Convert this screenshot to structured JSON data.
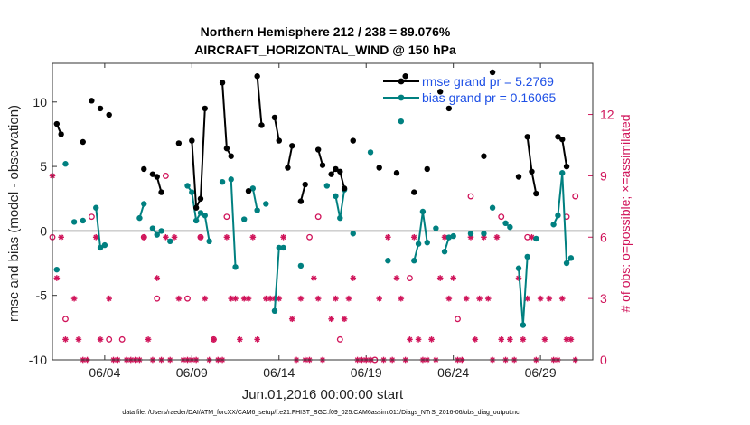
{
  "chart_data": {
    "type": "line",
    "title": "Northern Hemisphere 212 / 238 = 89.076%",
    "subtitle": "AIRCRAFT_HORIZONTAL_WIND @ 150 hPa",
    "xlabel": "Jun.01,2016 00:00:00 start",
    "ylabel": "rmse and bias (model - observation)",
    "ylabel_right": "# of obs: o=possible; ×=assimilated",
    "footnote": "data file: /Users/raeder/DAI/ATM_forcXX/CAM6_setup/f.e21.FHIST_BGC.f09_025.CAM6assim.011/Diags_NTrS_2016-06/obs_diag_output.nc",
    "xlim": [
      1,
      32
    ],
    "ylim": [
      -10,
      13
    ],
    "ylim_right": [
      0,
      14.5
    ],
    "x_ticks": [
      4,
      9,
      14,
      19,
      24,
      29
    ],
    "x_tick_labels": [
      "06/04",
      "06/09",
      "06/14",
      "06/19",
      "06/24",
      "06/29"
    ],
    "y_ticks": [
      -10,
      -5,
      0,
      5,
      10
    ],
    "y_tick_labels": [
      "-10",
      "-5",
      "0",
      "5",
      "10"
    ],
    "y_right_ticks": [
      0,
      3,
      6,
      9,
      12
    ],
    "y_right_tick_labels": [
      "0",
      "3",
      "6",
      "9",
      "12"
    ],
    "legend": {
      "location": "top-right",
      "entries": [
        "rmse grand pr = 5.2769",
        "bias grand pr = 0.16065"
      ]
    },
    "colors": {
      "rmse": "#000000",
      "bias": "#008080",
      "obs": "#d0145a",
      "zero_line": "#b4b4b4"
    },
    "series": [
      {
        "name": "rmse",
        "points": [
          [
            1.25,
            8.3
          ],
          [
            1.5,
            7.5
          ],
          [
            2.75,
            6.9
          ],
          [
            3.25,
            10.1
          ],
          [
            3.75,
            9.5
          ],
          [
            4.25,
            9.0
          ],
          [
            6.25,
            4.8
          ],
          [
            6.75,
            4.4
          ],
          [
            7.0,
            4.2
          ],
          [
            7.25,
            3.0
          ],
          [
            8.25,
            6.8
          ],
          [
            9.0,
            7.0
          ],
          [
            9.25,
            1.8
          ],
          [
            9.5,
            2.5
          ],
          [
            9.75,
            9.5
          ],
          [
            10.75,
            11.5
          ],
          [
            11.0,
            6.4
          ],
          [
            11.25,
            5.8
          ],
          [
            12.25,
            3.1
          ],
          [
            12.75,
            12.0
          ],
          [
            13.0,
            8.2
          ],
          [
            13.75,
            8.8
          ],
          [
            14.0,
            7.0
          ],
          [
            14.5,
            4.9
          ],
          [
            14.75,
            6.6
          ],
          [
            15.25,
            2.3
          ],
          [
            15.5,
            3.6
          ],
          [
            16.25,
            6.3
          ],
          [
            16.5,
            5.1
          ],
          [
            17.0,
            4.4
          ],
          [
            17.25,
            4.8
          ],
          [
            17.5,
            4.6
          ],
          [
            17.75,
            3.3
          ],
          [
            18.25,
            7.0
          ],
          [
            19.75,
            4.9
          ],
          [
            20.75,
            4.5
          ],
          [
            21.25,
            12.0
          ],
          [
            21.75,
            3.0
          ],
          [
            22.5,
            4.8
          ],
          [
            23.25,
            10.8
          ],
          [
            23.75,
            9.5
          ],
          [
            25.75,
            5.8
          ],
          [
            26.25,
            12.3
          ],
          [
            27.75,
            4.2
          ],
          [
            28.25,
            7.3
          ],
          [
            28.5,
            4.6
          ],
          [
            28.75,
            2.9
          ],
          [
            30.0,
            7.3
          ],
          [
            30.25,
            7.1
          ],
          [
            30.5,
            5.0
          ]
        ]
      },
      {
        "name": "bias",
        "points": [
          [
            1.25,
            -3.0
          ],
          [
            1.75,
            5.2
          ],
          [
            2.25,
            0.7
          ],
          [
            2.75,
            0.8
          ],
          [
            3.5,
            1.8
          ],
          [
            3.75,
            -1.3
          ],
          [
            4.0,
            -1.1
          ],
          [
            6.0,
            1.0
          ],
          [
            6.25,
            2.1
          ],
          [
            6.75,
            0.2
          ],
          [
            7.0,
            -0.3
          ],
          [
            7.25,
            0.0
          ],
          [
            7.75,
            -0.8
          ],
          [
            8.75,
            3.5
          ],
          [
            9.0,
            3.0
          ],
          [
            9.25,
            0.8
          ],
          [
            9.5,
            1.4
          ],
          [
            9.75,
            1.2
          ],
          [
            10.0,
            -0.8
          ],
          [
            10.75,
            3.8
          ],
          [
            11.25,
            4.0
          ],
          [
            11.5,
            -2.8
          ],
          [
            12.0,
            0.9
          ],
          [
            12.5,
            3.3
          ],
          [
            12.75,
            1.6
          ],
          [
            13.25,
            2.1
          ],
          [
            13.75,
            -6.2
          ],
          [
            14.0,
            -1.3
          ],
          [
            14.25,
            -1.3
          ],
          [
            15.25,
            -2.7
          ],
          [
            16.75,
            3.5
          ],
          [
            17.25,
            2.7
          ],
          [
            17.5,
            1.0
          ],
          [
            17.75,
            3.2
          ],
          [
            18.25,
            -0.2
          ],
          [
            19.25,
            6.1
          ],
          [
            20.25,
            -2.3
          ],
          [
            21.0,
            8.5
          ],
          [
            21.75,
            -2.3
          ],
          [
            22.0,
            -1.0
          ],
          [
            22.25,
            1.5
          ],
          [
            22.5,
            -0.9
          ],
          [
            23.0,
            0.2
          ],
          [
            23.5,
            -1.6
          ],
          [
            23.75,
            -0.5
          ],
          [
            24.0,
            -0.4
          ],
          [
            25.0,
            -0.2
          ],
          [
            25.75,
            -0.2
          ],
          [
            26.25,
            1.8
          ],
          [
            27.0,
            0.6
          ],
          [
            27.25,
            0.3
          ],
          [
            27.75,
            -2.9
          ],
          [
            28.0,
            -7.3
          ],
          [
            28.25,
            -2.0
          ],
          [
            28.75,
            -0.6
          ],
          [
            29.75,
            0.5
          ],
          [
            30.0,
            1.2
          ],
          [
            30.25,
            4.5
          ],
          [
            30.5,
            -2.5
          ],
          [
            30.75,
            -2.1
          ]
        ]
      },
      {
        "name": "possible",
        "points": [
          [
            1.0,
            6.0
          ],
          [
            1.75,
            2.0
          ],
          [
            3.25,
            7.0
          ],
          [
            4.25,
            1.0
          ],
          [
            5.0,
            1.0
          ],
          [
            6.25,
            6.0
          ],
          [
            7.0,
            3.0
          ],
          [
            7.5,
            9.0
          ],
          [
            8.75,
            3.0
          ],
          [
            9.5,
            6.0
          ],
          [
            10.25,
            1.0
          ],
          [
            11.0,
            7.0
          ],
          [
            15.75,
            6.0
          ],
          [
            16.25,
            7.0
          ],
          [
            17.5,
            1.0
          ],
          [
            19.5,
            0.0
          ],
          [
            21.5,
            4.0
          ],
          [
            24.25,
            2.0
          ],
          [
            25.0,
            8.0
          ],
          [
            26.75,
            7.0
          ],
          [
            28.25,
            6.0
          ],
          [
            30.5,
            7.0
          ],
          [
            31.0,
            8.0
          ]
        ]
      },
      {
        "name": "assimilated",
        "points": [
          [
            1.0,
            9.0
          ],
          [
            1.25,
            4.0
          ],
          [
            1.5,
            6.0
          ],
          [
            1.75,
            1.0
          ],
          [
            2.25,
            3.0
          ],
          [
            2.5,
            1.0
          ],
          [
            2.75,
            0.0
          ],
          [
            3.0,
            0.0
          ],
          [
            3.5,
            6.0
          ],
          [
            3.75,
            1.0
          ],
          [
            4.25,
            3.0
          ],
          [
            4.5,
            0.0
          ],
          [
            4.75,
            0.0
          ],
          [
            5.25,
            0.0
          ],
          [
            5.5,
            0.0
          ],
          [
            5.75,
            0.0
          ],
          [
            6.0,
            0.0
          ],
          [
            6.25,
            6.0
          ],
          [
            6.5,
            1.0
          ],
          [
            6.75,
            0.0
          ],
          [
            7.0,
            4.0
          ],
          [
            7.25,
            0.0
          ],
          [
            7.5,
            6.0
          ],
          [
            7.75,
            0.0
          ],
          [
            8.0,
            6.0
          ],
          [
            8.25,
            3.0
          ],
          [
            8.5,
            0.0
          ],
          [
            8.75,
            0.0
          ],
          [
            9.0,
            0.0
          ],
          [
            9.25,
            0.0
          ],
          [
            9.5,
            6.0
          ],
          [
            9.75,
            3.0
          ],
          [
            10.0,
            0.0
          ],
          [
            10.25,
            1.0
          ],
          [
            10.5,
            0.0
          ],
          [
            10.75,
            0.0
          ],
          [
            11.0,
            6.0
          ],
          [
            11.25,
            3.0
          ],
          [
            11.5,
            3.0
          ],
          [
            11.75,
            1.0
          ],
          [
            12.0,
            3.0
          ],
          [
            12.25,
            3.0
          ],
          [
            12.5,
            6.0
          ],
          [
            12.75,
            1.0
          ],
          [
            13.25,
            3.0
          ],
          [
            13.5,
            3.0
          ],
          [
            13.75,
            3.0
          ],
          [
            14.0,
            3.0
          ],
          [
            14.25,
            6.0
          ],
          [
            14.75,
            2.0
          ],
          [
            15.0,
            0.0
          ],
          [
            15.25,
            3.0
          ],
          [
            15.5,
            0.0
          ],
          [
            15.75,
            0.0
          ],
          [
            16.0,
            4.0
          ],
          [
            16.25,
            3.0
          ],
          [
            16.5,
            0.0
          ],
          [
            17.0,
            2.0
          ],
          [
            17.25,
            3.0
          ],
          [
            17.75,
            2.0
          ],
          [
            18.0,
            3.0
          ],
          [
            18.25,
            4.0
          ],
          [
            18.5,
            0.0
          ],
          [
            18.75,
            0.0
          ],
          [
            19.0,
            0.0
          ],
          [
            19.25,
            0.0
          ],
          [
            19.75,
            3.0
          ],
          [
            20.0,
            0.0
          ],
          [
            20.25,
            6.0
          ],
          [
            20.5,
            0.0
          ],
          [
            20.75,
            4.0
          ],
          [
            21.0,
            3.0
          ],
          [
            21.25,
            0.0
          ],
          [
            21.5,
            1.0
          ],
          [
            21.75,
            6.0
          ],
          [
            22.0,
            1.0
          ],
          [
            22.25,
            0.0
          ],
          [
            22.5,
            0.0
          ],
          [
            22.75,
            1.0
          ],
          [
            23.0,
            0.0
          ],
          [
            23.25,
            4.0
          ],
          [
            23.5,
            6.0
          ],
          [
            23.75,
            3.0
          ],
          [
            24.0,
            4.0
          ],
          [
            24.25,
            0.0
          ],
          [
            24.5,
            0.0
          ],
          [
            24.75,
            3.0
          ],
          [
            25.0,
            6.0
          ],
          [
            25.25,
            1.0
          ],
          [
            25.5,
            3.0
          ],
          [
            25.75,
            6.0
          ],
          [
            26.0,
            3.0
          ],
          [
            26.25,
            0.0
          ],
          [
            26.5,
            6.0
          ],
          [
            26.75,
            1.0
          ],
          [
            27.0,
            0.0
          ],
          [
            27.25,
            1.0
          ],
          [
            27.5,
            0.0
          ],
          [
            27.75,
            4.0
          ],
          [
            28.0,
            1.0
          ],
          [
            28.25,
            3.0
          ],
          [
            28.5,
            6.0
          ],
          [
            28.75,
            0.0
          ],
          [
            29.0,
            3.0
          ],
          [
            29.25,
            1.0
          ],
          [
            29.5,
            3.0
          ],
          [
            29.75,
            0.0
          ],
          [
            30.0,
            0.0
          ],
          [
            30.25,
            3.0
          ],
          [
            30.5,
            1.0
          ],
          [
            30.75,
            1.0
          ],
          [
            31.0,
            0.0
          ]
        ]
      }
    ]
  }
}
